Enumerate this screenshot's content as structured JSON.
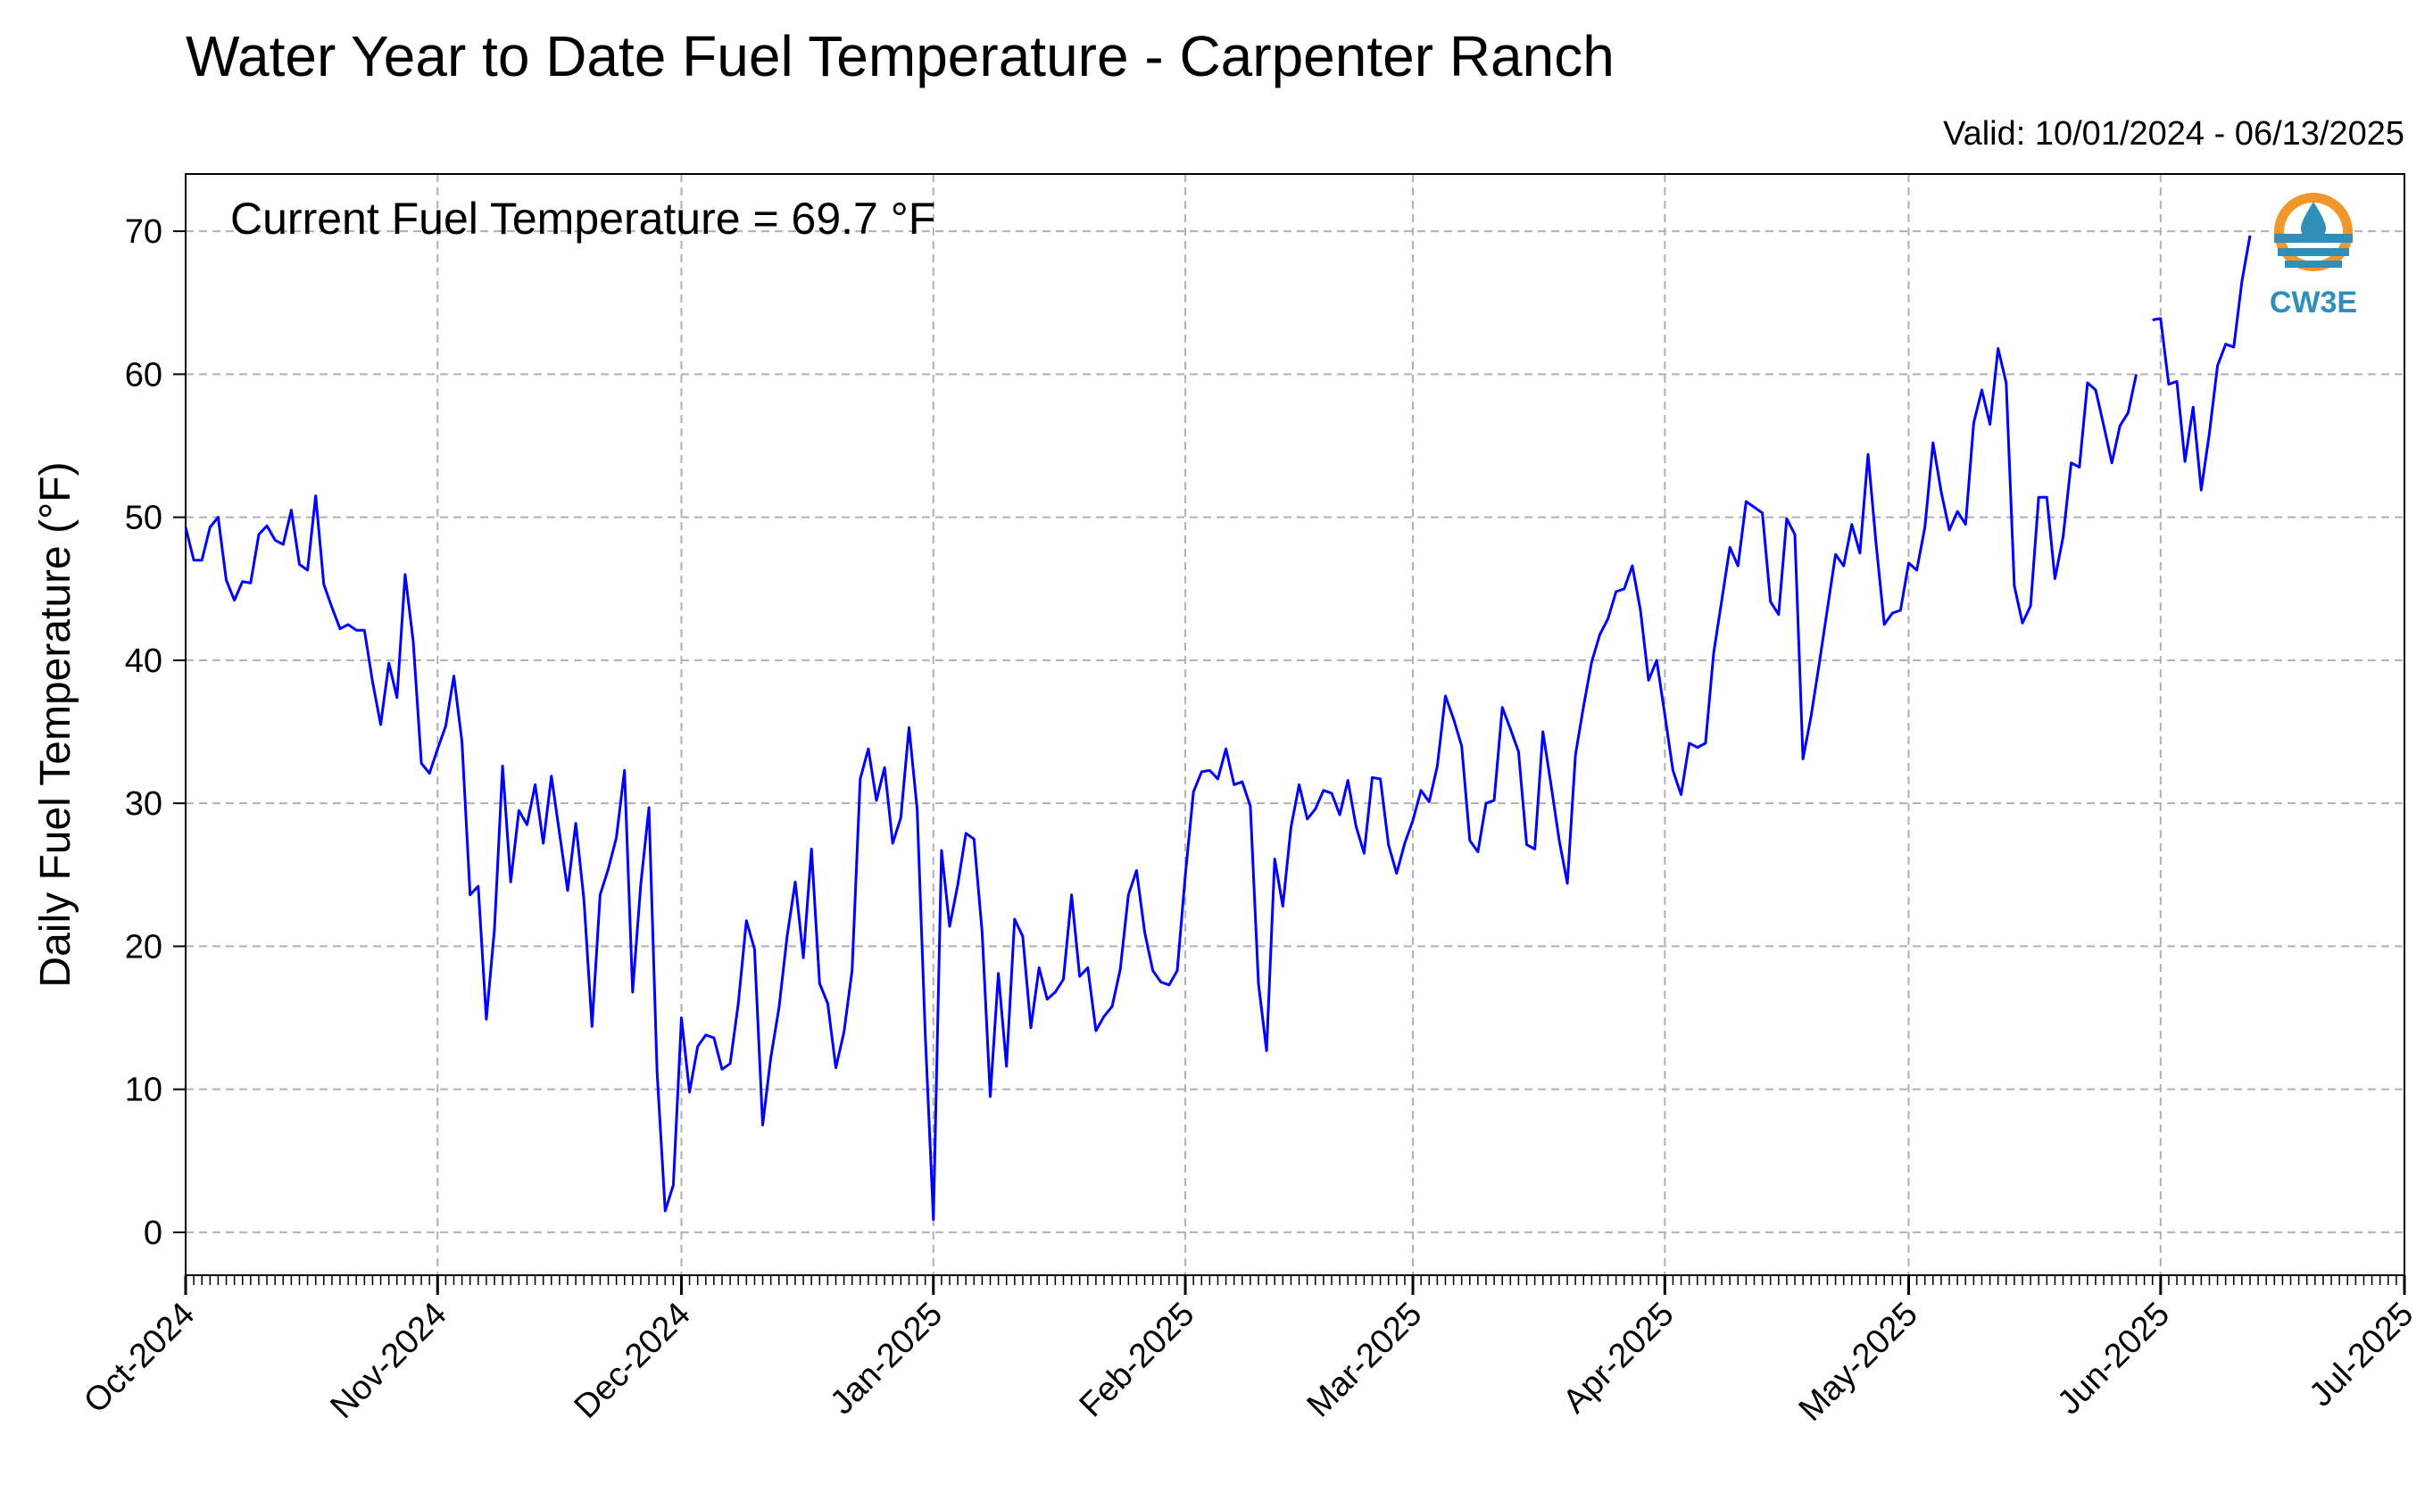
{
  "title": "Water Year to Date Fuel Temperature - Carpenter Ranch",
  "valid_label": "Valid: 10/01/2024 - 06/13/2025",
  "annotation": "Current Fuel Temperature = 69.7 °F",
  "logo_text": "CW3E",
  "colors": {
    "line": "#0000ff",
    "grid": "#b0b0b0",
    "logo_orange": "#f0962a",
    "logo_blue": "#2f8fb9"
  },
  "chart_data": {
    "type": "line",
    "title": "Water Year to Date Fuel Temperature - Carpenter Ranch",
    "xlabel": "",
    "ylabel": "Daily Fuel Temperature (°F)",
    "xlim": [
      "2024-10-01",
      "2025-07-01"
    ],
    "ylim": [
      -3,
      74
    ],
    "grid": true,
    "y_ticks": [
      0,
      10,
      20,
      30,
      40,
      50,
      60,
      70
    ],
    "x_ticks": [
      {
        "date": "2024-10-01",
        "label": "Oct-2024"
      },
      {
        "date": "2024-11-01",
        "label": "Nov-2024"
      },
      {
        "date": "2024-12-01",
        "label": "Dec-2024"
      },
      {
        "date": "2025-01-01",
        "label": "Jan-2025"
      },
      {
        "date": "2025-02-01",
        "label": "Feb-2025"
      },
      {
        "date": "2025-03-01",
        "label": "Mar-2025"
      },
      {
        "date": "2025-04-01",
        "label": "Apr-2025"
      },
      {
        "date": "2025-05-01",
        "label": "May-2025"
      },
      {
        "date": "2025-06-01",
        "label": "Jun-2025"
      },
      {
        "date": "2025-07-01",
        "label": "Jul-2025"
      }
    ],
    "x_start": "2024-10-01",
    "y": [
      49.3,
      47.0,
      47.0,
      49.3,
      50.0,
      45.6,
      44.2,
      45.5,
      45.4,
      48.8,
      49.4,
      48.4,
      48.1,
      50.5,
      46.7,
      46.3,
      51.5,
      45.3,
      43.7,
      42.2,
      42.5,
      42.1,
      42.1,
      38.5,
      35.5,
      39.8,
      37.4,
      46.0,
      41.3,
      32.8,
      32.1,
      33.8,
      35.4,
      38.9,
      34.3,
      23.6,
      24.2,
      14.9,
      21.2,
      32.6,
      24.5,
      29.5,
      28.5,
      31.3,
      27.2,
      31.9,
      27.9,
      23.9,
      28.6,
      23.3,
      14.4,
      23.6,
      25.4,
      27.6,
      32.3,
      16.8,
      24.3,
      29.7,
      11.2,
      1.5,
      3.3,
      15.0,
      9.8,
      13.0,
      13.8,
      13.6,
      11.4,
      11.8,
      16.0,
      21.8,
      19.8,
      7.5,
      12.2,
      15.7,
      20.7,
      24.5,
      19.2,
      26.8,
      17.4,
      16.0,
      11.5,
      14.0,
      18.3,
      31.7,
      33.8,
      30.2,
      32.5,
      27.2,
      29.0,
      35.3,
      29.6,
      13.8,
      0.9,
      26.7,
      21.4,
      24.3,
      27.9,
      27.5,
      21.0,
      9.5,
      18.1,
      11.6,
      21.9,
      20.7,
      14.3,
      18.5,
      16.3,
      16.8,
      17.7,
      23.6,
      17.9,
      18.5,
      14.1,
      15.1,
      15.8,
      18.4,
      23.6,
      25.3,
      21.0,
      18.3,
      17.5,
      17.3,
      18.3,
      25.0,
      30.8,
      32.2,
      32.3,
      31.7,
      33.8,
      31.3,
      31.5,
      29.8,
      17.4,
      12.7,
      26.1,
      22.8,
      28.3,
      31.3,
      28.9,
      29.6,
      30.9,
      30.7,
      29.2,
      31.6,
      28.4,
      26.5,
      31.8,
      31.7,
      27.1,
      25.1,
      27.2,
      28.8,
      30.9,
      30.1,
      32.6,
      37.5,
      35.9,
      34.0,
      27.4,
      26.6,
      30.0,
      30.2,
      36.7,
      35.2,
      33.6,
      27.1,
      26.8,
      35.0,
      31.3,
      27.4,
      24.4,
      33.4,
      36.8,
      39.9,
      41.8,
      42.9,
      44.8,
      45.0,
      46.6,
      43.5,
      38.6,
      40.0,
      36.2,
      32.3,
      30.6,
      34.2,
      33.9,
      34.2,
      40.5,
      44.2,
      47.9,
      46.6,
      51.1,
      50.7,
      50.3,
      44.1,
      43.2,
      49.9,
      48.8,
      33.1,
      36.1,
      39.8,
      43.6,
      47.4,
      46.6,
      49.5,
      47.5,
      54.4,
      48.1,
      42.5,
      43.3,
      43.5,
      46.8,
      46.3,
      49.3,
      55.2,
      51.8,
      49.1,
      50.4,
      49.5,
      56.6,
      58.9,
      56.5,
      61.8,
      59.4,
      45.2,
      42.6,
      43.8,
      51.4,
      51.4,
      45.7,
      48.6,
      53.8,
      53.5,
      59.4,
      58.9,
      56.4,
      53.8,
      56.4,
      57.3,
      60.0,
      null,
      63.8,
      63.9,
      59.3,
      59.5,
      53.9,
      57.7,
      51.9,
      55.9,
      60.6,
      62.1,
      61.9,
      66.5,
      69.7
    ]
  }
}
